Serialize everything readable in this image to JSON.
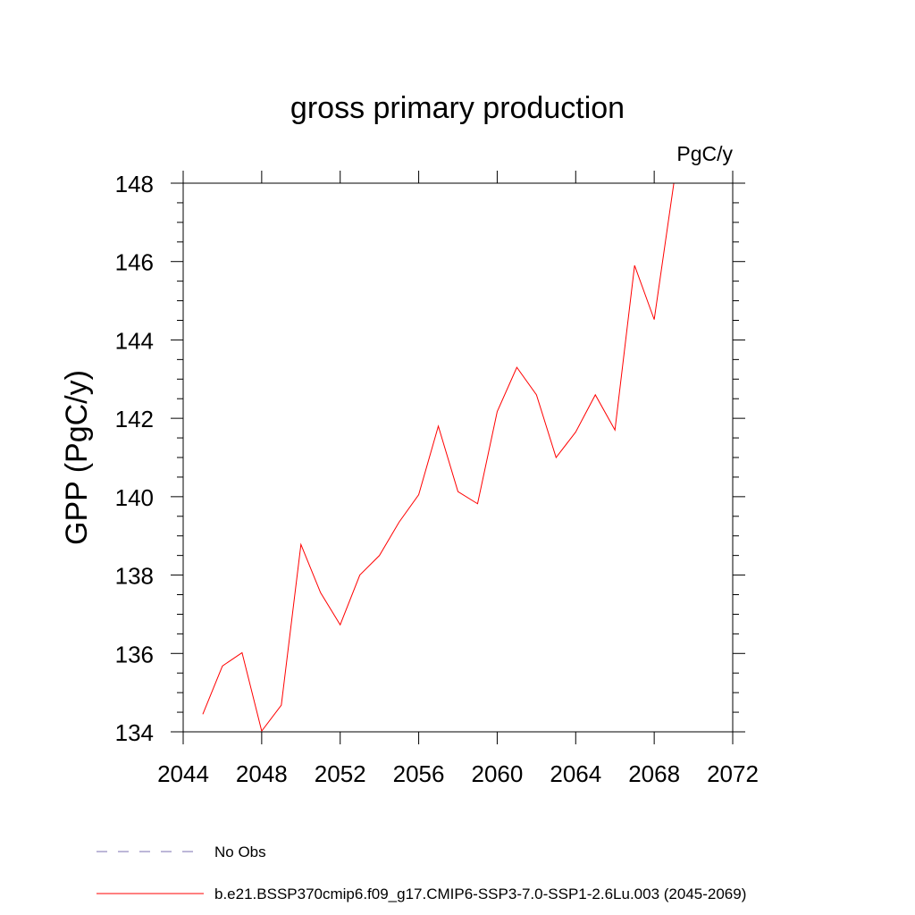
{
  "chart_data": {
    "type": "line",
    "title": "gross primary production",
    "units_label": "PgC/y",
    "xlabel": "",
    "ylabel": "GPP  (PgC/y)",
    "xlim": [
      2044,
      2072
    ],
    "ylim": [
      134,
      148
    ],
    "xticks": [
      2044,
      2048,
      2052,
      2056,
      2060,
      2064,
      2068,
      2072
    ],
    "yticks": [
      134,
      136,
      138,
      140,
      142,
      144,
      146,
      148
    ],
    "grid": false,
    "legend_position": "bottom",
    "series": [
      {
        "name": "b.e21.BSSP370cmip6.f09_g17.CMIP6-SSP3-7.0-SSP1-2.6Lu.003 (2045-2069)",
        "color": "#ff0000",
        "style": "solid",
        "x": [
          2045,
          2046,
          2047,
          2048,
          2049,
          2050,
          2051,
          2052,
          2053,
          2054,
          2055,
          2056,
          2057,
          2058,
          2059,
          2060,
          2061,
          2062,
          2063,
          2064,
          2065,
          2066,
          2067,
          2068,
          2069
        ],
        "y": [
          134.45,
          135.68,
          136.02,
          134.02,
          134.68,
          138.78,
          137.55,
          136.73,
          138.0,
          138.5,
          139.35,
          140.05,
          141.8,
          140.13,
          139.82,
          142.17,
          143.3,
          142.6,
          141.0,
          141.65,
          142.6,
          141.7,
          145.9,
          144.52,
          148.0
        ]
      },
      {
        "name": "No Obs",
        "color": "#7b6fb0",
        "style": "dashed",
        "x": [],
        "y": []
      }
    ]
  }
}
